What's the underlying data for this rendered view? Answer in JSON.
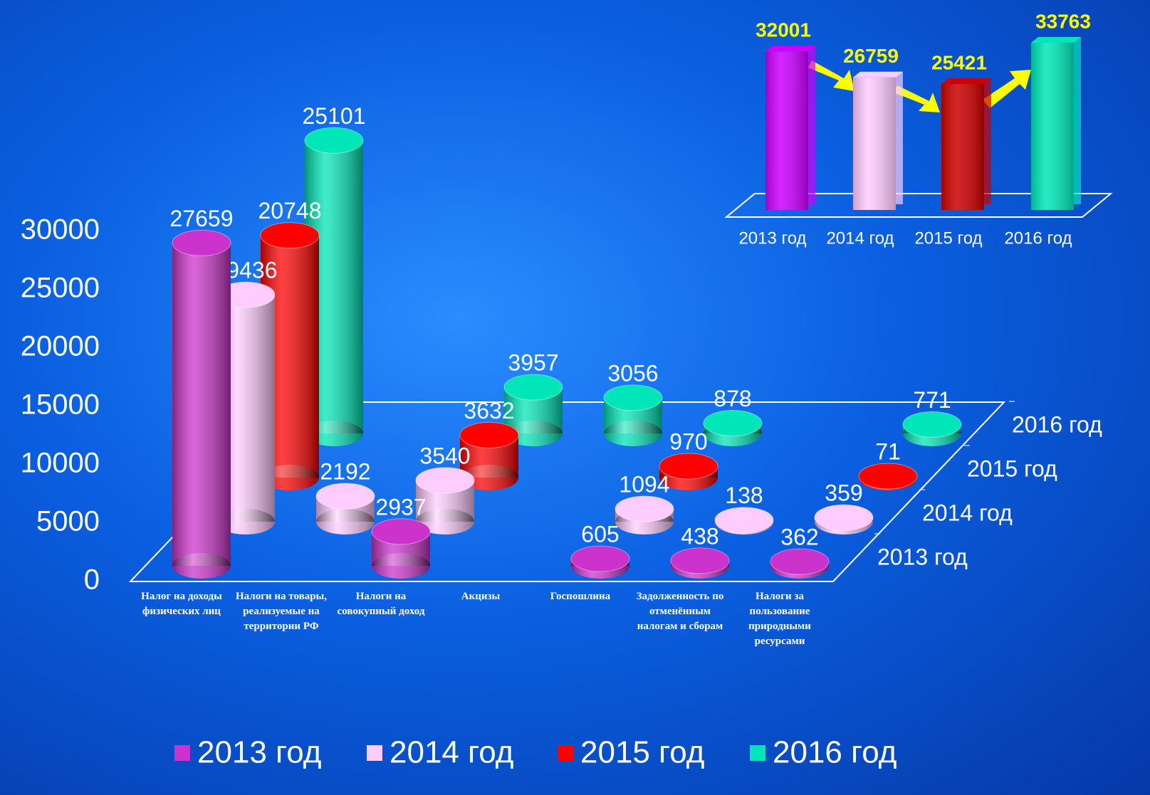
{
  "chart_data": [
    {
      "type": "bar3d",
      "categories": [
        "Налог на доходы физических лиц",
        "Налоги на товары, реализуемые на территории РФ",
        "Налоги на совокупный доход",
        "Акцизы",
        "Госпошлина",
        "Задолженность по отменённым налогам и сборам",
        "Налоги за пользование природными ресурсами"
      ],
      "series": [
        {
          "name": "2013 год",
          "color": "#cc33cc",
          "values": [
            27659,
            null,
            2937,
            null,
            605,
            438,
            362
          ]
        },
        {
          "name": "2014 год",
          "color": "#ffccff",
          "values": [
            19436,
            2192,
            3540,
            null,
            1094,
            138,
            359
          ]
        },
        {
          "name": "2015 год",
          "color": "#ff0000",
          "values": [
            20748,
            null,
            3632,
            null,
            970,
            null,
            71
          ]
        },
        {
          "name": "2016 год",
          "color": "#00e6b8",
          "values": [
            25101,
            null,
            3957,
            3056,
            878,
            null,
            771
          ]
        }
      ],
      "ylim": [
        0,
        30000
      ],
      "yticks": [
        0,
        5000,
        10000,
        15000,
        20000,
        25000,
        30000
      ],
      "legend": "bottom"
    },
    {
      "type": "bar",
      "categories": [
        "2013 год",
        "2014 год",
        "2015 год",
        "2016 год"
      ],
      "values": [
        32001,
        26759,
        25421,
        33763
      ],
      "colors": [
        "#cc00ff",
        "#ffccff",
        "#cc0000",
        "#00e6b8"
      ]
    }
  ]
}
